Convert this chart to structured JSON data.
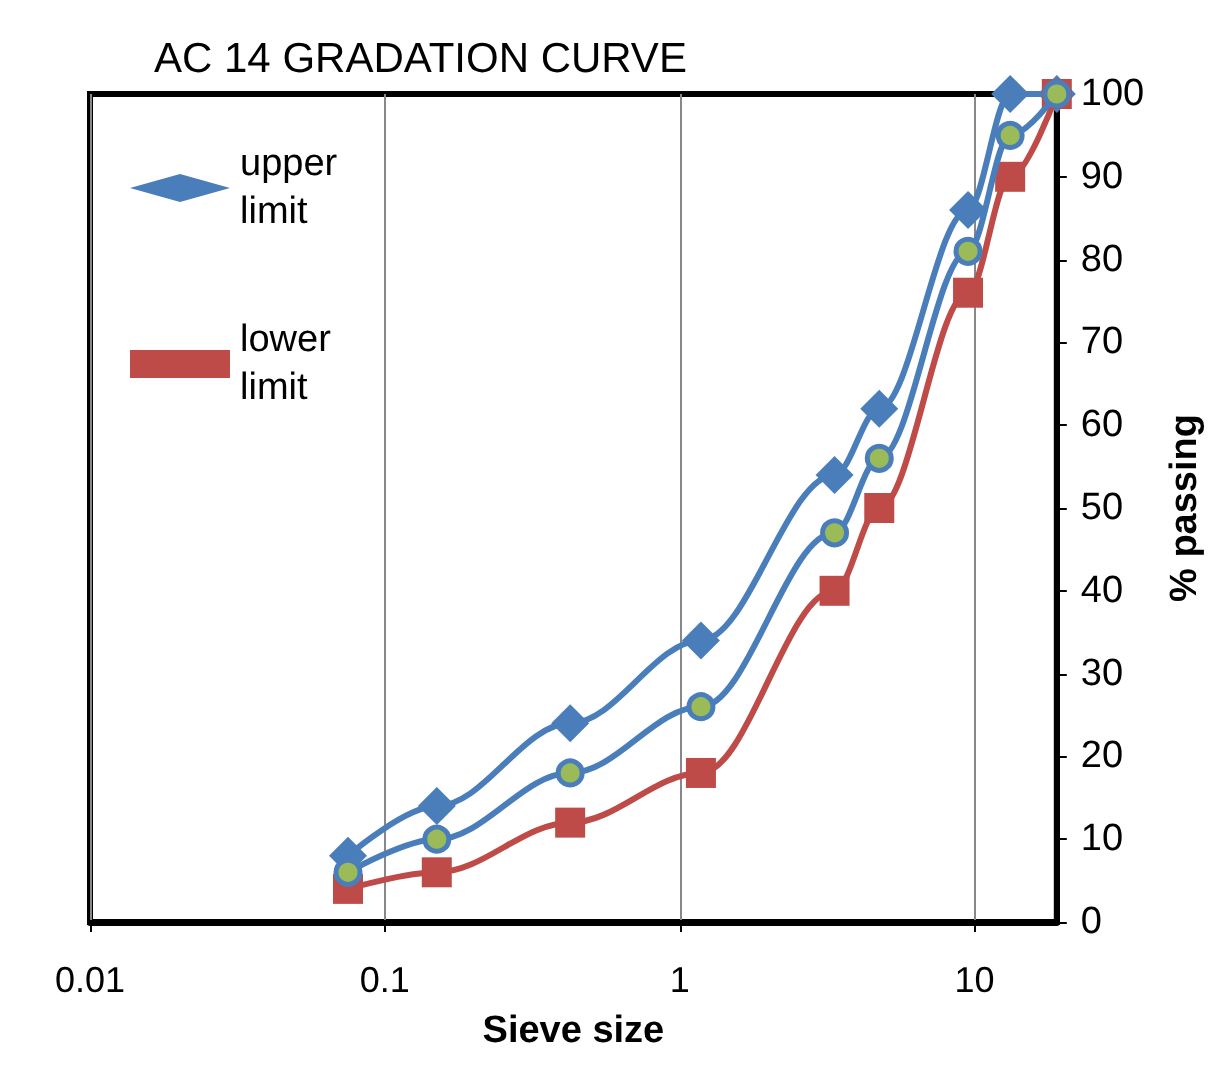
{
  "chart_data": {
    "type": "line",
    "title": "AC 14 GRADATION CURVE",
    "xlabel": "Sieve size",
    "ylabel": "% passing",
    "log": "x",
    "xlim": [
      0.01,
      19
    ],
    "xticks": [
      0.01,
      0.1,
      1,
      10
    ],
    "ylim": [
      0,
      100
    ],
    "yticks": [
      0,
      10,
      20,
      30,
      40,
      50,
      60,
      70,
      80,
      90,
      100
    ],
    "grid": "x",
    "legend": "top left",
    "series": [
      {
        "name": "upper limit",
        "color": "#4a7ebb",
        "marker": "diamond",
        "x": [
          0.075,
          0.15,
          0.425,
          1.18,
          3.35,
          4.75,
          9.5,
          13.2,
          19
        ],
        "values": [
          8,
          14,
          24,
          34,
          54,
          62,
          86,
          100,
          100
        ]
      },
      {
        "name": "lower limit",
        "color": "#be4b48",
        "marker": "square",
        "x": [
          0.075,
          0.15,
          0.425,
          1.18,
          3.35,
          4.75,
          9.5,
          13.2,
          19
        ],
        "values": [
          4,
          6,
          12,
          18,
          40,
          50,
          76,
          90,
          100
        ]
      },
      {
        "color": "#4a7ebb",
        "marker": "circle",
        "x": [
          0.075,
          0.15,
          0.425,
          1.18,
          3.35,
          4.75,
          9.5,
          13.2,
          19
        ],
        "values": [
          6,
          10,
          18,
          26,
          47,
          56,
          81,
          95,
          100
        ]
      }
    ]
  }
}
